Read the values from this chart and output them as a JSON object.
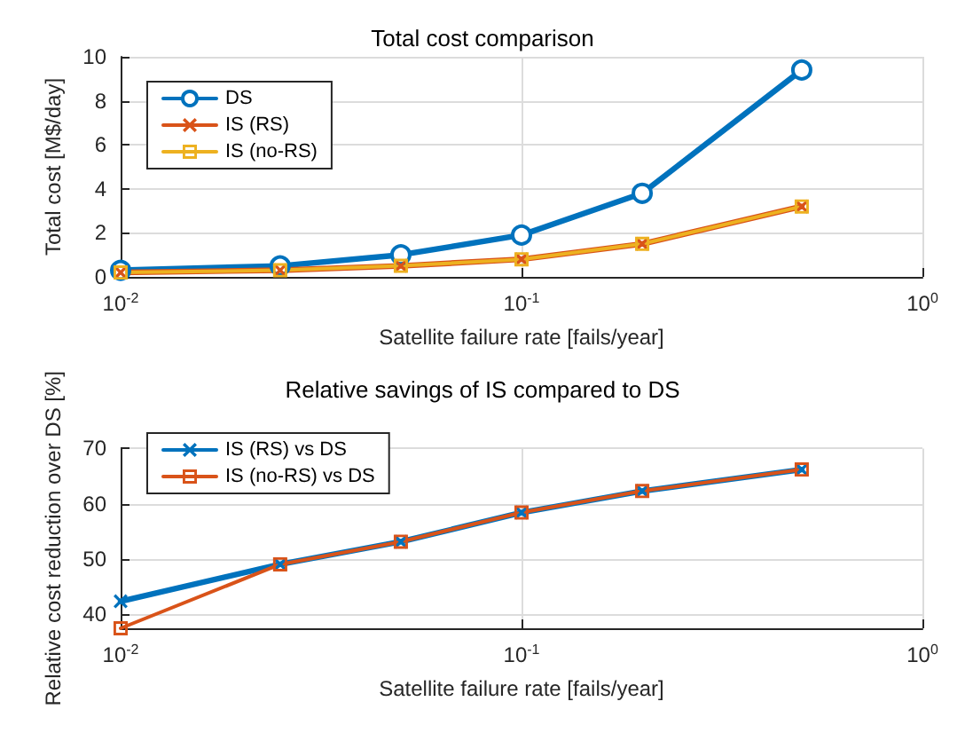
{
  "chart_data": [
    {
      "type": "line",
      "title": "Total cost comparison",
      "xlabel": "Satellite failure rate [fails/year]",
      "ylabel": "Total cost [M$/day]",
      "log": "x",
      "x": [
        0.01,
        0.025,
        0.05,
        0.1,
        0.2,
        0.5
      ],
      "xlim": [
        0.01,
        1
      ],
      "xticks": [
        {
          "value": 0.01,
          "label": "10$^{-2}$"
        },
        {
          "value": 0.1,
          "label": "10$^{-1}$"
        },
        {
          "value": 1,
          "label": "10$^{0}$"
        }
      ],
      "ylim": [
        0,
        10
      ],
      "yticks": [
        0,
        2,
        4,
        6,
        8,
        10
      ],
      "grid": true,
      "legend": "top left",
      "line_style": "solid",
      "series": [
        {
          "name": "DS",
          "color": "#0072bd",
          "marker": "circle",
          "values": [
            0.3,
            0.5,
            1.0,
            1.9,
            3.8,
            9.4
          ]
        },
        {
          "name": "IS (RS)",
          "color": "#d95319",
          "marker": "cross",
          "values": [
            0.2,
            0.3,
            0.5,
            0.8,
            1.5,
            3.2
          ]
        },
        {
          "name": "IS (no-RS)",
          "color": "#edb120",
          "marker": "square",
          "values": [
            0.2,
            0.3,
            0.5,
            0.8,
            1.5,
            3.2
          ]
        }
      ]
    },
    {
      "type": "line",
      "title": "Relative savings of IS compared to DS",
      "xlabel": "Satellite failure rate [fails/year]",
      "ylabel": "Relative cost reduction over DS [%]",
      "log": "x",
      "x": [
        0.01,
        0.025,
        0.05,
        0.1,
        0.2,
        0.5
      ],
      "xlim": [
        0.01,
        1
      ],
      "xticks": [
        {
          "value": 0.01,
          "label": "10$^{-2}$"
        },
        {
          "value": 0.1,
          "label": "10$^{-1}$"
        },
        {
          "value": 1,
          "label": "10$^{0}$"
        }
      ],
      "ylim": [
        37.4,
        70
      ],
      "yticks": [
        40,
        50,
        60,
        70
      ],
      "grid": true,
      "legend": "top left",
      "line_style": "solid",
      "series": [
        {
          "name": "IS (RS) vs DS",
          "color": "#0072bd",
          "marker": "cross",
          "values": [
            42.3,
            49.0,
            53.1,
            58.4,
            62.3,
            66.2
          ]
        },
        {
          "name": "IS (no-RS) vs DS",
          "color": "#d95319",
          "marker": "square",
          "values": [
            37.4,
            49.0,
            53.1,
            58.4,
            62.3,
            66.2
          ]
        }
      ]
    }
  ]
}
